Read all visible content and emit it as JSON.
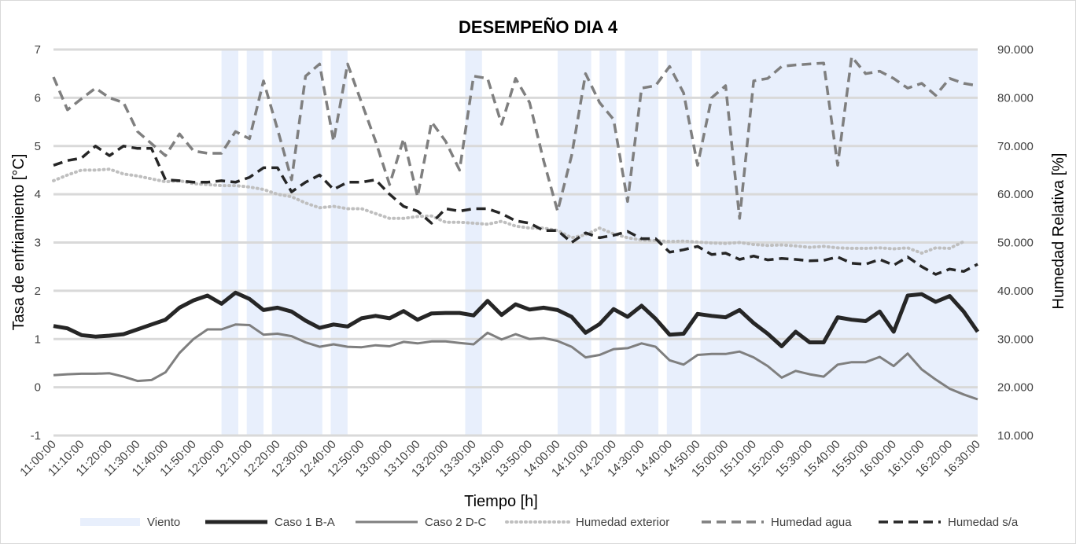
{
  "chart_data": {
    "type": "line",
    "title": "DESEMPEÑO DIA 4",
    "xlabel": "Tiempo [h]",
    "ylabel": "Tasa de enfriamiento [°C]",
    "y2label": "Humedad Relativa [%]",
    "ylim": [
      -1,
      7
    ],
    "y2lim": [
      10,
      90
    ],
    "y_ticks": [
      "-1",
      "0",
      "1",
      "2",
      "3",
      "4",
      "5",
      "6",
      "7"
    ],
    "y2_ticks": [
      "10.000",
      "20.000",
      "30.000",
      "40.000",
      "50.000",
      "60.000",
      "70.000",
      "80.000",
      "90.000"
    ],
    "x_ticks": [
      "11:00:00",
      "11:10:00",
      "11:20:00",
      "11:30:00",
      "11:40:00",
      "11:50:00",
      "12:00:00",
      "12:10:00",
      "12:20:00",
      "12:30:00",
      "12:40:00",
      "12:50:00",
      "13:00:00",
      "13:10:00",
      "13:20:00",
      "13:30:00",
      "13:40:00",
      "13:50:00",
      "14:00:00",
      "14:10:00",
      "14:20:00",
      "14:30:00",
      "14:40:00",
      "14:50:00",
      "15:00:00",
      "15:10:00",
      "15:20:00",
      "15:30:00",
      "15:40:00",
      "15:50:00",
      "16:00:00",
      "16:10:00",
      "16:20:00",
      "16:30:00"
    ],
    "x_start": "11:00:00",
    "x_step_minutes": 5,
    "viento_name": "Viento",
    "viento_periods": [
      [
        12.0,
        12.1
      ],
      [
        12.15,
        12.25
      ],
      [
        12.3,
        12.6
      ],
      [
        12.65,
        12.75
      ],
      [
        13.45,
        13.55
      ],
      [
        14.0,
        14.2
      ],
      [
        14.25,
        14.35
      ],
      [
        14.4,
        14.6
      ],
      [
        14.65,
        14.8
      ],
      [
        14.85,
        16.5
      ]
    ],
    "series": [
      {
        "name": "Caso 1 B-A",
        "axis": "left",
        "color": "#262626",
        "width": 5,
        "dash": "",
        "values": [
          1.27,
          1.22,
          1.08,
          1.05,
          1.07,
          1.1,
          1.2,
          1.3,
          1.4,
          1.65,
          1.8,
          1.9,
          1.73,
          1.96,
          1.83,
          1.6,
          1.65,
          1.57,
          1.38,
          1.23,
          1.3,
          1.26,
          1.43,
          1.48,
          1.43,
          1.58,
          1.4,
          1.53,
          1.54,
          1.54,
          1.49,
          1.79,
          1.5,
          1.72,
          1.61,
          1.65,
          1.6,
          1.46,
          1.13,
          1.31,
          1.62,
          1.46,
          1.69,
          1.42,
          1.09,
          1.11,
          1.52,
          1.48,
          1.45,
          1.6,
          1.33,
          1.11,
          0.85,
          1.15,
          0.93,
          0.93,
          1.45,
          1.4,
          1.37,
          1.57,
          1.15,
          1.9,
          1.93,
          1.77,
          1.89,
          1.57,
          1.15
        ]
      },
      {
        "name": "Caso 2 D-C",
        "axis": "left",
        "color": "#7f7f7f",
        "width": 3,
        "dash": "",
        "values": [
          0.25,
          0.27,
          0.28,
          0.28,
          0.29,
          0.22,
          0.13,
          0.15,
          0.31,
          0.71,
          1.0,
          1.2,
          1.2,
          1.3,
          1.29,
          1.09,
          1.11,
          1.06,
          0.93,
          0.84,
          0.89,
          0.84,
          0.83,
          0.87,
          0.85,
          0.94,
          0.91,
          0.95,
          0.95,
          0.92,
          0.89,
          1.13,
          0.99,
          1.1,
          1.0,
          1.02,
          0.96,
          0.84,
          0.62,
          0.67,
          0.79,
          0.81,
          0.91,
          0.84,
          0.56,
          0.47,
          0.67,
          0.69,
          0.69,
          0.74,
          0.62,
          0.44,
          0.2,
          0.34,
          0.27,
          0.22,
          0.47,
          0.52,
          0.52,
          0.63,
          0.44,
          0.7,
          0.37,
          0.16,
          -0.03,
          -0.15,
          -0.25
        ]
      },
      {
        "name": "Humedad exterior",
        "axis": "right",
        "color": "#bfbfbf",
        "width": 4,
        "dash": "1 5",
        "values": [
          62.8,
          64.0,
          65.0,
          65.0,
          65.2,
          64.2,
          63.8,
          63.2,
          62.6,
          62.8,
          62.2,
          62.0,
          61.8,
          61.8,
          61.5,
          61.0,
          60.0,
          59.5,
          58.2,
          57.2,
          57.5,
          57.0,
          57.0,
          56.0,
          55.0,
          55.0,
          55.4,
          55.5,
          54.2,
          54.2,
          54.0,
          53.8,
          54.4,
          53.4,
          53.0,
          53.0,
          52.5,
          51.0,
          51.6,
          53.0,
          51.8,
          51.0,
          50.5,
          50.4,
          50.2,
          50.3,
          50.1,
          49.9,
          49.8,
          50.0,
          49.6,
          49.4,
          49.5,
          49.3,
          49.0,
          49.2,
          48.9,
          48.8,
          48.8,
          48.9,
          48.7,
          48.9,
          47.8,
          48.9,
          48.8,
          50.2
        ]
      },
      {
        "name": "Humedad agua",
        "axis": "right",
        "color": "#7f7f7f",
        "width": 3.5,
        "dash": "12 7",
        "values": [
          84.3,
          77.5,
          79.8,
          82.0,
          80.0,
          79.0,
          73.0,
          70.5,
          68.0,
          72.5,
          69.0,
          68.5,
          68.5,
          73.0,
          71.5,
          83.5,
          73.5,
          63.0,
          84.5,
          87.0,
          71.0,
          87.0,
          79.0,
          71.0,
          62.0,
          71.5,
          59.5,
          75.0,
          71.0,
          65.0,
          84.5,
          84.0,
          74.5,
          84.0,
          79.0,
          67.0,
          56.5,
          68.0,
          85.0,
          79.0,
          75.5,
          58.5,
          82.0,
          82.5,
          86.5,
          81.0,
          66.0,
          80.0,
          82.5,
          55.0,
          83.5,
          84.0,
          86.5,
          86.8,
          87.0,
          87.2,
          66.0,
          88.5,
          85.0,
          85.5,
          84.0,
          82.0,
          83.0,
          80.5,
          84.0,
          83.0,
          82.5
        ]
      },
      {
        "name": "Humedad s/a",
        "axis": "right",
        "color": "#262626",
        "width": 3.5,
        "dash": "12 7",
        "values": [
          66.0,
          67.0,
          67.5,
          70.0,
          68.0,
          70.0,
          69.5,
          69.5,
          63.0,
          62.8,
          62.5,
          62.5,
          62.8,
          62.5,
          63.5,
          65.5,
          65.5,
          60.5,
          62.5,
          64.0,
          61.0,
          62.5,
          62.5,
          63.0,
          60.0,
          57.5,
          56.5,
          54.0,
          57.0,
          56.5,
          57.0,
          57.0,
          56.0,
          54.5,
          54.0,
          52.5,
          52.5,
          50.0,
          52.0,
          51.0,
          51.5,
          52.3,
          50.8,
          50.8,
          48.0,
          48.5,
          49.2,
          47.5,
          47.8,
          46.5,
          47.2,
          46.4,
          46.7,
          46.5,
          46.2,
          46.3,
          47.0,
          45.7,
          45.5,
          46.5,
          45.3,
          47.0,
          45.0,
          43.4,
          44.5,
          44.0,
          45.5
        ]
      }
    ]
  }
}
